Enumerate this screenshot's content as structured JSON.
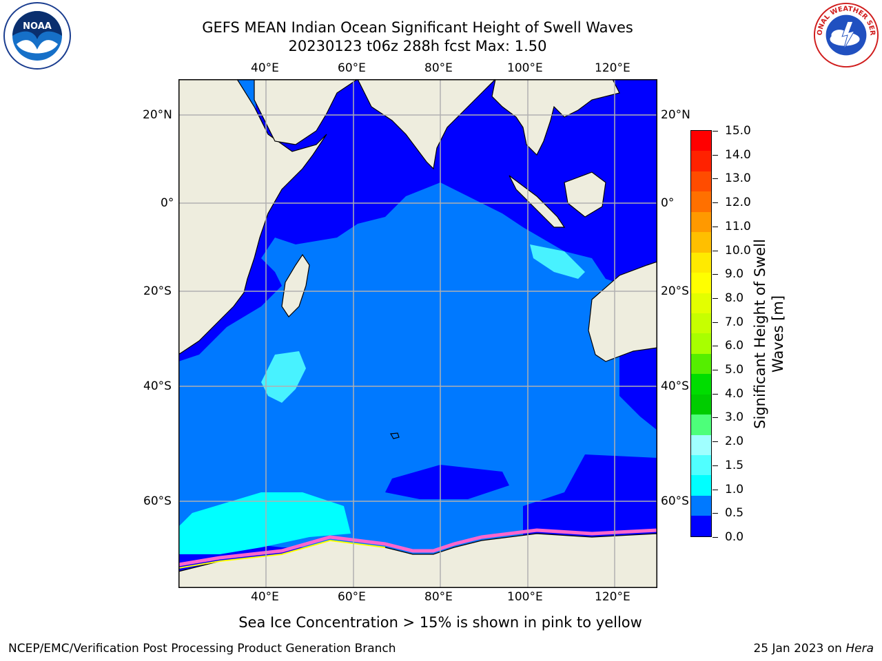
{
  "header": {
    "title_line1": "GEFS MEAN Indian Ocean Significant Height of Swell Waves",
    "title_line2": "20230123 t06z 288h fcst   Max: 1.50"
  },
  "logos": {
    "left": "NOAA",
    "right": "NATIONAL WEATHER SERVICE"
  },
  "map": {
    "lon_labels": [
      "40°E",
      "60°E",
      "80°E",
      "100°E",
      "120°E"
    ],
    "lat_labels": [
      "20°N",
      "0°",
      "20°S",
      "40°S",
      "60°S"
    ],
    "land_color": "#eeedde",
    "ocean_low_color": "#0000ff",
    "ocean_mid_color": "#0079ff"
  },
  "colorbar": {
    "title": "Significant Height of Swell Waves [m]",
    "tick_labels": [
      "15.0",
      "14.0",
      "13.0",
      "12.0",
      "11.0",
      "10.0",
      "9.0",
      "8.0",
      "7.0",
      "6.0",
      "5.0",
      "4.0",
      "3.0",
      "2.0",
      "1.5",
      "1.0",
      "0.5",
      "0.0"
    ],
    "colors_top_to_bottom": [
      "#ff0000",
      "#ff2200",
      "#ff4c00",
      "#ff7000",
      "#ff9900",
      "#ffbf00",
      "#ffea00",
      "#ffff00",
      "#e3ff00",
      "#c7ff00",
      "#a8ff00",
      "#55ee00",
      "#00dd00",
      "#00cc00",
      "#4dff7a",
      "#a0ffff",
      "#50ffff",
      "#00ffff",
      "#0079ff",
      "#0000ff"
    ]
  },
  "footer": {
    "note": "Sea Ice Concentration > 15% is shown in pink to yellow",
    "credit_left": "NCEP/EMC/Verification Post Processing Product Generation Branch",
    "credit_date": "25 Jan 2023 on ",
    "credit_machine": "Hera"
  }
}
